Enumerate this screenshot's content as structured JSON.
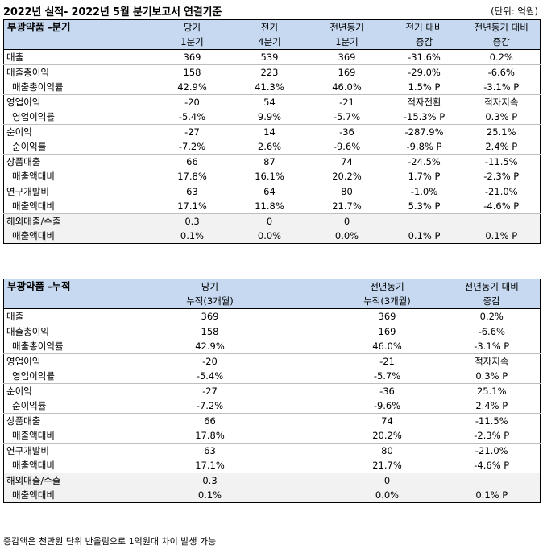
{
  "title": "2022년 실적- 2022년 5월 분기보고서 연결기준",
  "unit": "(단위: 억원)",
  "quarterly": {
    "section_label": "부광약품 -분기",
    "headers_top": [
      "당기",
      "전기",
      "전년동기",
      "전기 대비",
      "전년동기 대비"
    ],
    "headers_bottom": [
      "1분기",
      "4분기",
      "1분기",
      "증감",
      "증감"
    ],
    "rows": [
      [
        "매출",
        "369",
        "539",
        "369",
        "-31.6%",
        "0.2%"
      ],
      [
        "매출총이익",
        "158",
        "223",
        "169",
        "-29.0%",
        "-6.6%"
      ],
      [
        "매출총이익률",
        "42.9%",
        "41.3%",
        "46.0%",
        "1.5% P",
        "-3.1% P"
      ],
      [
        "영업이익",
        "-20",
        "54",
        "-21",
        "적자전환",
        "적자지속"
      ],
      [
        "영업이익률",
        "-5.4%",
        "9.9%",
        "-5.7%",
        "-15.3% P",
        "0.3% P"
      ],
      [
        "순이익",
        "-27",
        "14",
        "-36",
        "-287.9%",
        "25.1%"
      ],
      [
        "순이익률",
        "-7.2%",
        "2.6%",
        "-9.6%",
        "-9.8% P",
        "2.4% P"
      ],
      [
        "상품매출",
        "66",
        "87",
        "74",
        "-24.5%",
        "-11.5%"
      ],
      [
        "매출액대비",
        "17.8%",
        "16.1%",
        "20.2%",
        "1.7% P",
        "-2.3% P"
      ],
      [
        "연구개발비",
        "63",
        "64",
        "80",
        "-1.0%",
        "-21.0%"
      ],
      [
        "매출액대비",
        "17.1%",
        "11.8%",
        "21.7%",
        "5.3% P",
        "-4.6% P"
      ],
      [
        "해외매출/수출",
        "0.3",
        "0",
        "0",
        "",
        ""
      ],
      [
        "매출액대비",
        "0.1%",
        "0.0%",
        "0.0%",
        "0.1% P",
        "0.1% P"
      ]
    ]
  },
  "cumulative": {
    "section_label": "부광약품 -누적",
    "headers_top": [
      "당기",
      "전년동기",
      "전년동기 대비"
    ],
    "headers_bottom": [
      "누적(3개월)",
      "누적(3개월)",
      "증감"
    ],
    "rows": [
      [
        "매출",
        "369",
        "369",
        "0.2%"
      ],
      [
        "매출총이익",
        "158",
        "169",
        "-6.6%"
      ],
      [
        "매출총이익률",
        "42.9%",
        "46.0%",
        "-3.1% P"
      ],
      [
        "영업이익",
        "-20",
        "-21",
        "적자지속"
      ],
      [
        "영업이익률",
        "-5.4%",
        "-5.7%",
        "0.3% P"
      ],
      [
        "순이익",
        "-27",
        "-36",
        "25.1%"
      ],
      [
        "순이익률",
        "-7.2%",
        "-9.6%",
        "2.4% P"
      ],
      [
        "상품매출",
        "66",
        "74",
        "-11.5%"
      ],
      [
        "매출액대비",
        "17.8%",
        "20.2%",
        "-2.3% P"
      ],
      [
        "연구개발비",
        "63",
        "80",
        "-21.0%"
      ],
      [
        "매출액대비",
        "17.1%",
        "21.7%",
        "-4.6% P"
      ],
      [
        "해외매출/수출",
        "0.3",
        "0",
        ""
      ],
      [
        "매출액대비",
        "0.1%",
        "0.0%",
        "0.1% P"
      ]
    ]
  },
  "footnote": "증감액은 천만원 단위 반올림으로 1억원대 차이 발생 가능",
  "colors": {
    "header_bg": "#c6d9f0",
    "gray_row_bg": "#f2f2f2"
  }
}
